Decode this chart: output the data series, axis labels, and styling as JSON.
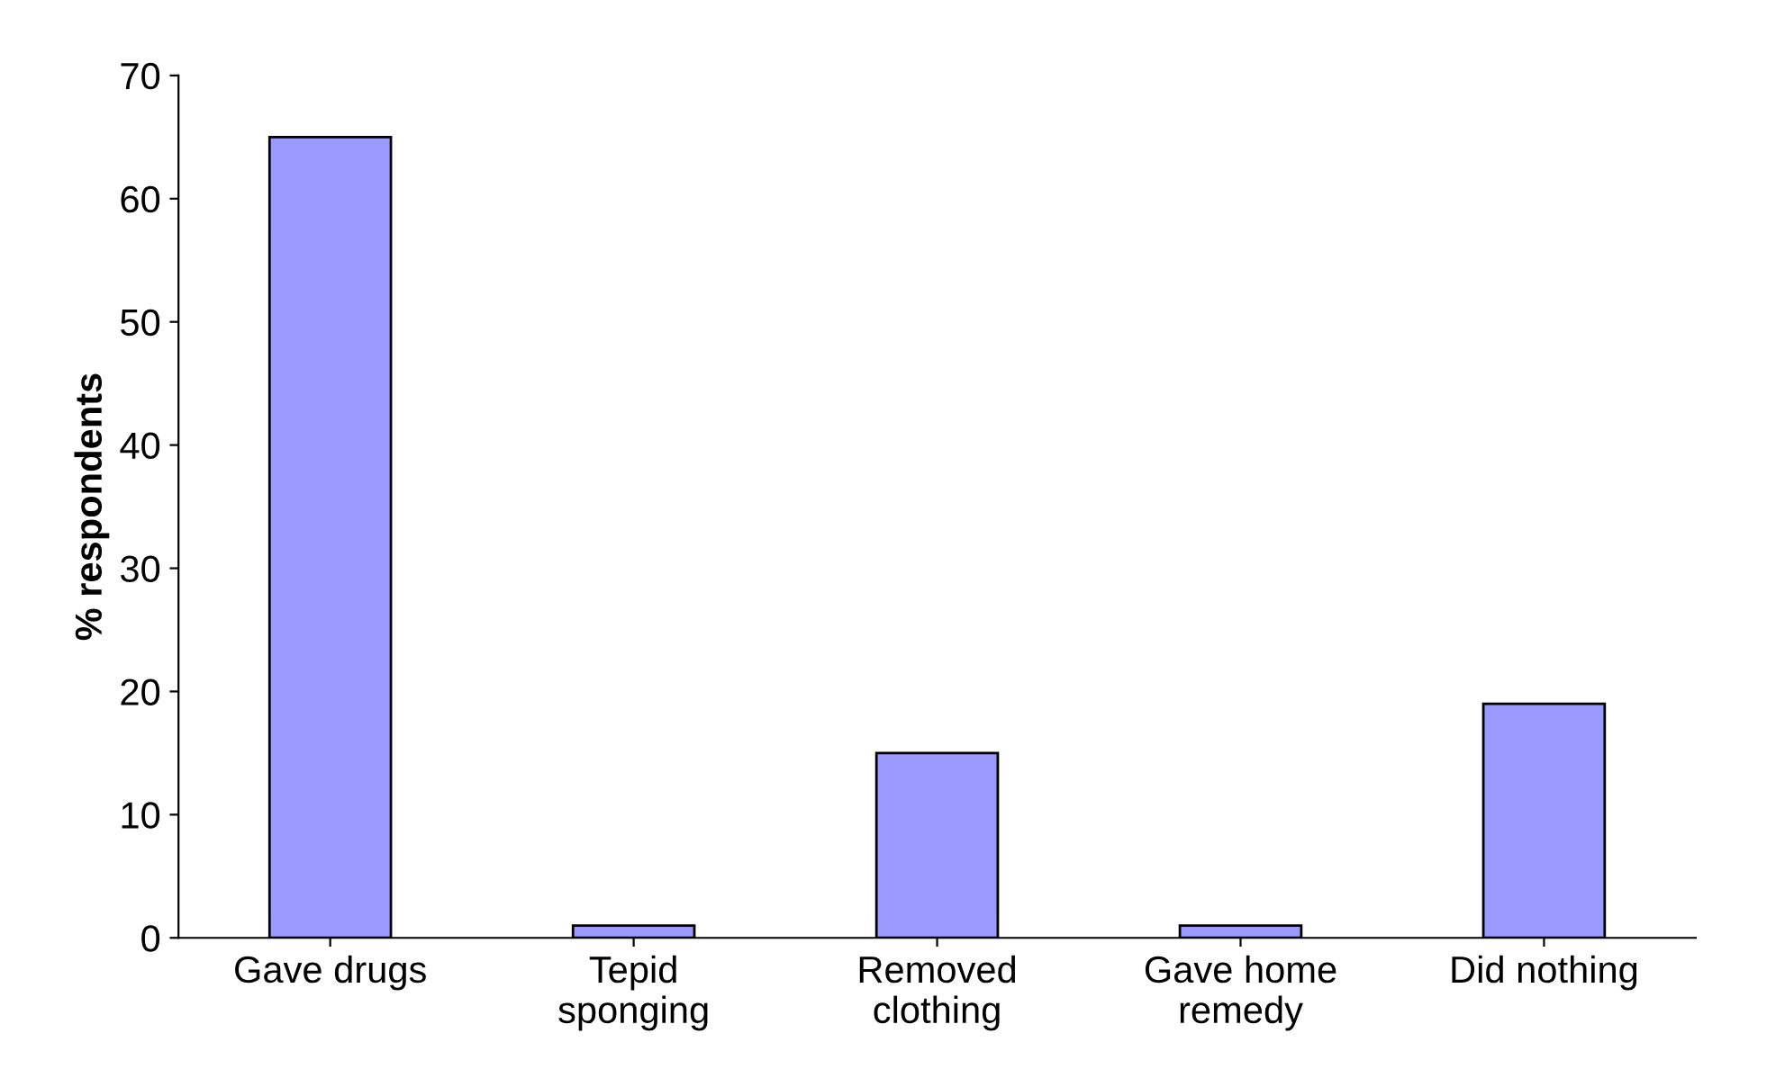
{
  "chart_data": {
    "type": "bar",
    "ylabel": "% respondents",
    "categories": [
      "Gave drugs",
      "Tepid\nsponging",
      "Removed\nclothing",
      "Gave home\nremedy",
      "Did nothing"
    ],
    "values": [
      65,
      1,
      15,
      1,
      19
    ],
    "color": "#9999ff",
    "ylim": [
      0,
      70
    ],
    "yticks": [
      0,
      10,
      20,
      30,
      40,
      50,
      60,
      70
    ],
    "grid": false
  }
}
